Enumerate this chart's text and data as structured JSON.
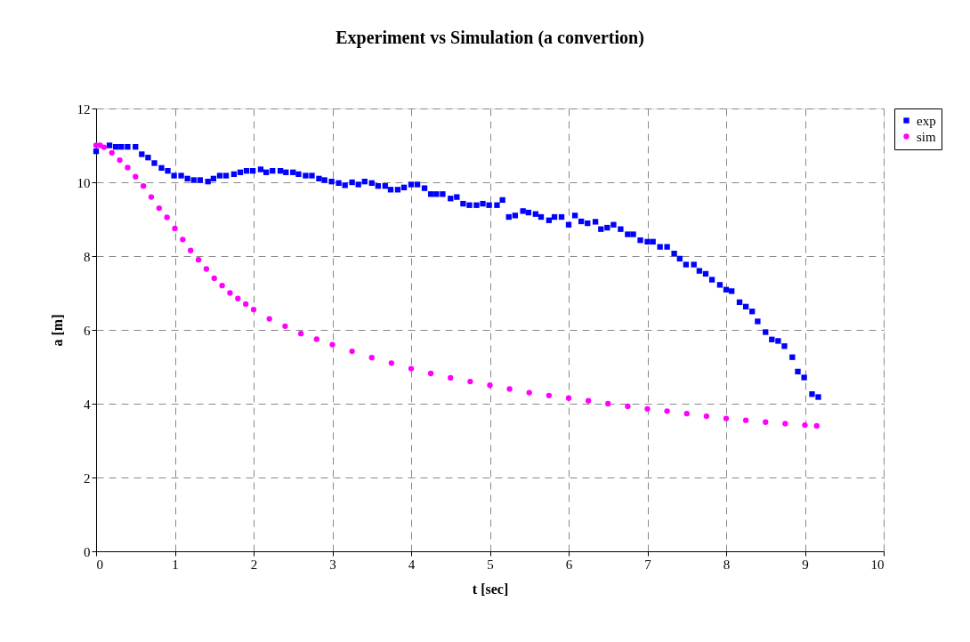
{
  "chart_data": {
    "type": "scatter",
    "title": "Experiment vs Simulation (a convertion)",
    "xlabel": "t [sec]",
    "ylabel": "a [m]",
    "xlim": [
      0,
      10
    ],
    "xticks": [
      0,
      1,
      2,
      3,
      4,
      5,
      6,
      7,
      8,
      9,
      10
    ],
    "ylim": [
      0,
      12
    ],
    "yticks": [
      0,
      2,
      4,
      6,
      8,
      10,
      12
    ],
    "grid": true,
    "legend": "right",
    "series": [
      {
        "name": "exp",
        "color": "#0000ff",
        "marker": "square",
        "x": [
          0.0,
          0.17,
          0.25,
          0.32,
          0.4,
          0.5,
          0.58,
          0.66,
          0.74,
          0.83,
          0.91,
          0.99,
          1.08,
          1.16,
          1.24,
          1.32,
          1.42,
          1.49,
          1.57,
          1.65,
          1.75,
          1.83,
          1.91,
          1.99,
          2.09,
          2.16,
          2.24,
          2.34,
          2.41,
          2.5,
          2.57,
          2.66,
          2.74,
          2.83,
          2.9,
          2.99,
          3.08,
          3.16,
          3.25,
          3.33,
          3.41,
          3.5,
          3.58,
          3.67,
          3.74,
          3.83,
          3.91,
          4.0,
          4.08,
          4.17,
          4.25,
          4.32,
          4.4,
          4.5,
          4.58,
          4.66,
          4.74,
          4.83,
          4.91,
          4.99,
          5.09,
          5.16,
          5.24,
          5.32,
          5.42,
          5.49,
          5.58,
          5.65,
          5.75,
          5.82,
          5.91,
          6.0,
          6.08,
          6.16,
          6.24,
          6.34,
          6.41,
          6.49,
          6.57,
          6.66,
          6.75,
          6.82,
          6.91,
          7.0,
          7.07,
          7.16,
          7.25,
          7.34,
          7.41,
          7.49,
          7.59,
          7.66,
          7.74,
          7.82,
          7.92,
          8.0,
          8.07,
          8.17,
          8.25,
          8.33,
          8.4,
          8.5,
          8.58,
          8.66,
          8.74,
          8.84,
          8.91,
          8.99,
          9.09,
          9.17
        ],
        "values": [
          10.84,
          11.0,
          10.96,
          10.96,
          10.96,
          10.96,
          10.76,
          10.67,
          10.52,
          10.39,
          10.31,
          10.18,
          10.18,
          10.1,
          10.06,
          10.06,
          10.02,
          10.1,
          10.18,
          10.18,
          10.22,
          10.27,
          10.31,
          10.31,
          10.35,
          10.27,
          10.31,
          10.31,
          10.27,
          10.27,
          10.22,
          10.18,
          10.18,
          10.1,
          10.06,
          10.02,
          9.98,
          9.92,
          10.0,
          9.94,
          10.02,
          9.98,
          9.9,
          9.9,
          9.8,
          9.8,
          9.86,
          9.94,
          9.94,
          9.84,
          9.68,
          9.68,
          9.68,
          9.56,
          9.6,
          9.42,
          9.38,
          9.38,
          9.42,
          9.38,
          9.38,
          9.52,
          9.06,
          9.1,
          9.22,
          9.18,
          9.14,
          9.06,
          8.97,
          9.06,
          9.06,
          8.85,
          9.1,
          8.94,
          8.89,
          8.93,
          8.73,
          8.77,
          8.85,
          8.73,
          8.59,
          8.59,
          8.43,
          8.39,
          8.39,
          8.25,
          8.25,
          8.07,
          7.93,
          7.77,
          7.77,
          7.6,
          7.52,
          7.36,
          7.22,
          7.09,
          7.05,
          6.75,
          6.63,
          6.5,
          6.23,
          5.94,
          5.74,
          5.7,
          5.56,
          5.26,
          4.87,
          4.71,
          4.26,
          4.18
        ]
      },
      {
        "name": "sim",
        "color": "#ff00ff",
        "marker": "circle",
        "x": [
          0.0,
          0.05,
          0.1,
          0.2,
          0.3,
          0.4,
          0.5,
          0.6,
          0.7,
          0.8,
          0.9,
          1.0,
          1.1,
          1.2,
          1.3,
          1.4,
          1.5,
          1.6,
          1.7,
          1.8,
          1.9,
          2.0,
          2.2,
          2.4,
          2.6,
          2.8,
          3.0,
          3.25,
          3.5,
          3.75,
          4.0,
          4.25,
          4.5,
          4.75,
          5.0,
          5.25,
          5.5,
          5.75,
          6.0,
          6.25,
          6.5,
          6.75,
          7.0,
          7.25,
          7.5,
          7.75,
          8.0,
          8.25,
          8.5,
          8.75,
          9.0,
          9.15
        ],
        "values": [
          11.0,
          11.0,
          10.95,
          10.8,
          10.6,
          10.4,
          10.15,
          9.9,
          9.6,
          9.3,
          9.05,
          8.75,
          8.45,
          8.15,
          7.9,
          7.65,
          7.4,
          7.2,
          7.0,
          6.85,
          6.7,
          6.55,
          6.3,
          6.1,
          5.9,
          5.75,
          5.6,
          5.42,
          5.25,
          5.1,
          4.95,
          4.82,
          4.7,
          4.6,
          4.5,
          4.4,
          4.3,
          4.22,
          4.15,
          4.08,
          4.0,
          3.93,
          3.86,
          3.8,
          3.73,
          3.66,
          3.6,
          3.55,
          3.5,
          3.46,
          3.42,
          3.4
        ]
      }
    ]
  }
}
